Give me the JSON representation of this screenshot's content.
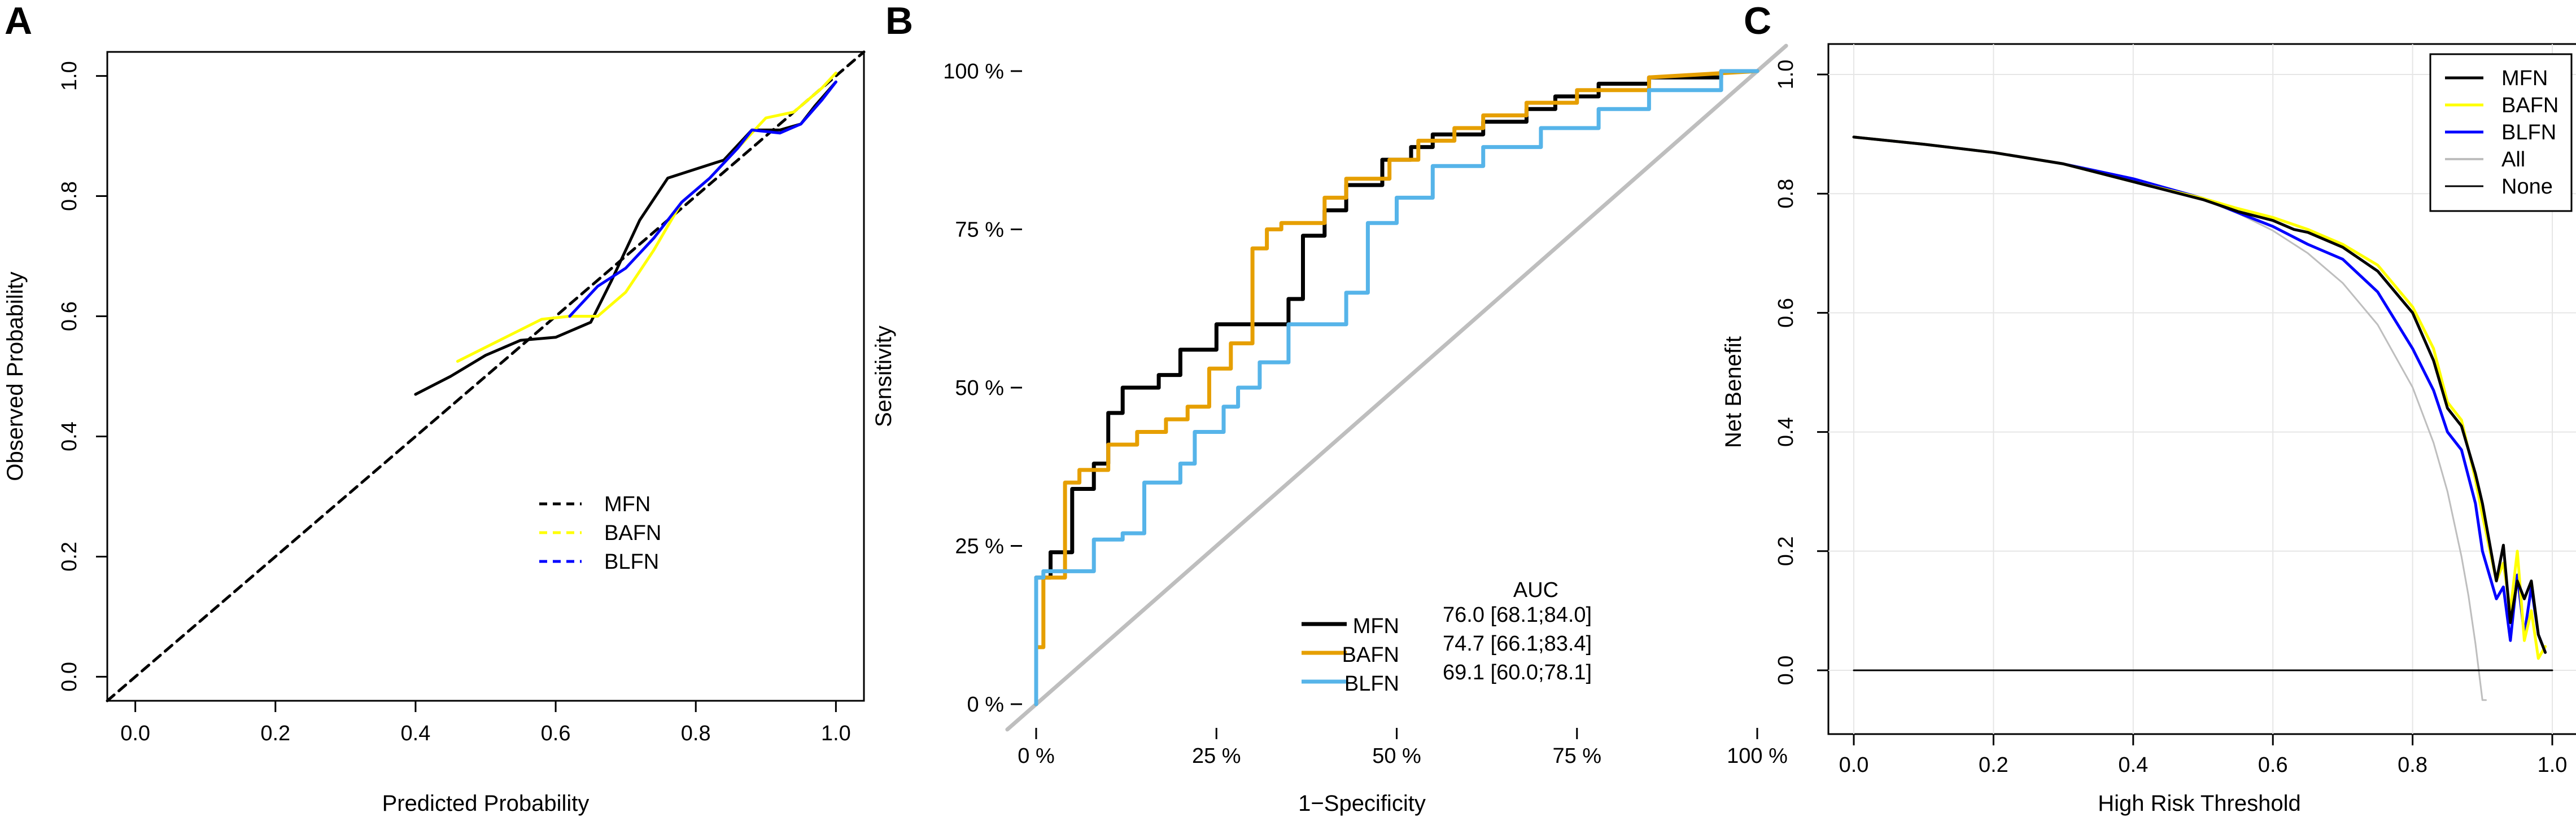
{
  "figure": {
    "panels": [
      "A",
      "B",
      "C"
    ]
  },
  "colors": {
    "mfn": "#000000",
    "bafn": "#ffff00",
    "bafn_roc": "#e69f00",
    "blfn": "#0000ff",
    "blfn_roc": "#56b4e9",
    "diag_roc": "#bebebe",
    "all": "#bebebe",
    "none": "#000000",
    "grid": "#e6e6e6"
  },
  "chart_data": [
    {
      "panel": "A",
      "type": "line",
      "title": "",
      "xlabel": "Predicted Probability",
      "ylabel": "Observed Probability",
      "xlim": [
        -0.04,
        1.04
      ],
      "ylim": [
        -0.04,
        1.04
      ],
      "xticks": [
        "0.0",
        "0.2",
        "0.4",
        "0.6",
        "0.8",
        "1.0"
      ],
      "yticks": [
        "0.0",
        "0.2",
        "0.4",
        "0.6",
        "0.8",
        "1.0"
      ],
      "legend": [
        "MFN",
        "BAFN",
        "BLFN"
      ],
      "series": [
        {
          "name": "Ideal",
          "style": "dashed",
          "color_key": "mfn",
          "x": [
            -0.04,
            1.04
          ],
          "y": [
            -0.04,
            1.04
          ]
        },
        {
          "name": "MFN",
          "color_key": "mfn",
          "x": [
            0.4,
            0.45,
            0.5,
            0.55,
            0.6,
            0.65,
            0.68,
            0.72,
            0.76,
            0.8,
            0.84,
            0.88,
            0.92,
            0.95,
            0.97,
            1.0
          ],
          "y": [
            0.47,
            0.5,
            0.535,
            0.56,
            0.565,
            0.59,
            0.66,
            0.76,
            0.83,
            0.845,
            0.86,
            0.91,
            0.91,
            0.92,
            0.95,
            0.99
          ]
        },
        {
          "name": "BAFN",
          "color_key": "bafn",
          "x": [
            0.46,
            0.52,
            0.58,
            0.62,
            0.66,
            0.7,
            0.74,
            0.78,
            0.82,
            0.86,
            0.9,
            0.94,
            0.98,
            1.0
          ],
          "y": [
            0.525,
            0.56,
            0.595,
            0.6,
            0.6,
            0.64,
            0.71,
            0.79,
            0.83,
            0.88,
            0.93,
            0.94,
            0.98,
            1.005
          ]
        },
        {
          "name": "BLFN",
          "color_key": "blfn",
          "x": [
            0.62,
            0.66,
            0.7,
            0.74,
            0.78,
            0.82,
            0.86,
            0.88,
            0.92,
            0.95,
            0.98,
            1.0
          ],
          "y": [
            0.6,
            0.65,
            0.68,
            0.73,
            0.79,
            0.83,
            0.88,
            0.91,
            0.905,
            0.92,
            0.96,
            0.99
          ]
        }
      ]
    },
    {
      "panel": "B",
      "type": "line",
      "title": "",
      "xlabel": "1−Specificity",
      "ylabel": "Sensitivity",
      "xlim": [
        -0.04,
        1.04
      ],
      "ylim": [
        -0.04,
        1.04
      ],
      "xticks": [
        "0 %",
        "25 %",
        "50 %",
        "75 %",
        "100 %"
      ],
      "yticks": [
        "0 %",
        "25 %",
        "50 %",
        "75 %",
        "100 %"
      ],
      "legend_title": "AUC",
      "legend": [
        {
          "name": "MFN",
          "auc": "76.0 [68.1;84.0]"
        },
        {
          "name": "BAFN",
          "auc": "74.7 [66.1;83.4]"
        },
        {
          "name": "BLFN",
          "auc": "69.1 [60.0;78.1]"
        }
      ],
      "series": [
        {
          "name": "Chance",
          "color_key": "diag_roc",
          "x": [
            -0.04,
            1.04
          ],
          "y": [
            -0.04,
            1.04
          ]
        },
        {
          "name": "MFN",
          "color_key": "mfn",
          "step": true,
          "x": [
            0,
            0,
            0.02,
            0.02,
            0.05,
            0.05,
            0.08,
            0.08,
            0.1,
            0.1,
            0.12,
            0.12,
            0.17,
            0.17,
            0.2,
            0.2,
            0.25,
            0.25,
            0.3,
            0.3,
            0.35,
            0.35,
            0.37,
            0.37,
            0.4,
            0.4,
            0.43,
            0.43,
            0.48,
            0.48,
            0.52,
            0.52,
            0.55,
            0.55,
            0.62,
            0.62,
            0.68,
            0.68,
            0.72,
            0.72,
            0.78,
            0.78,
            0.85,
            0.85,
            0.95,
            0.95,
            1.0
          ],
          "y": [
            0,
            0.2,
            0.2,
            0.24,
            0.24,
            0.34,
            0.34,
            0.38,
            0.38,
            0.46,
            0.46,
            0.5,
            0.5,
            0.52,
            0.52,
            0.56,
            0.56,
            0.6,
            0.6,
            0.6,
            0.6,
            0.64,
            0.64,
            0.74,
            0.74,
            0.78,
            0.78,
            0.82,
            0.82,
            0.86,
            0.86,
            0.88,
            0.88,
            0.9,
            0.9,
            0.92,
            0.92,
            0.94,
            0.94,
            0.96,
            0.96,
            0.98,
            0.98,
            0.99,
            0.99,
            1.0,
            1.0
          ]
        },
        {
          "name": "BAFN",
          "color_key": "bafn_roc",
          "step": true,
          "x": [
            0,
            0,
            0.01,
            0.01,
            0.04,
            0.04,
            0.06,
            0.06,
            0.1,
            0.1,
            0.14,
            0.14,
            0.18,
            0.18,
            0.21,
            0.21,
            0.24,
            0.24,
            0.27,
            0.27,
            0.3,
            0.3,
            0.32,
            0.32,
            0.34,
            0.34,
            0.4,
            0.4,
            0.43,
            0.43,
            0.49,
            0.49,
            0.53,
            0.53,
            0.58,
            0.58,
            0.62,
            0.62,
            0.68,
            0.68,
            0.75,
            0.75,
            0.85,
            0.85,
            1.0
          ],
          "y": [
            0,
            0.09,
            0.09,
            0.2,
            0.2,
            0.35,
            0.35,
            0.37,
            0.37,
            0.41,
            0.41,
            0.43,
            0.43,
            0.45,
            0.45,
            0.47,
            0.47,
            0.53,
            0.53,
            0.57,
            0.57,
            0.72,
            0.72,
            0.75,
            0.75,
            0.76,
            0.76,
            0.8,
            0.8,
            0.83,
            0.83,
            0.86,
            0.86,
            0.89,
            0.89,
            0.91,
            0.91,
            0.93,
            0.93,
            0.95,
            0.95,
            0.97,
            0.97,
            0.99,
            1.0
          ]
        },
        {
          "name": "BLFN",
          "color_key": "blfn_roc",
          "step": true,
          "x": [
            0,
            0,
            0.01,
            0.01,
            0.08,
            0.08,
            0.12,
            0.12,
            0.15,
            0.15,
            0.2,
            0.2,
            0.22,
            0.22,
            0.26,
            0.26,
            0.28,
            0.28,
            0.31,
            0.31,
            0.35,
            0.35,
            0.4,
            0.4,
            0.43,
            0.43,
            0.46,
            0.46,
            0.5,
            0.5,
            0.55,
            0.55,
            0.62,
            0.62,
            0.7,
            0.7,
            0.78,
            0.78,
            0.85,
            0.85,
            0.95,
            0.95,
            1.0
          ],
          "y": [
            0,
            0.2,
            0.2,
            0.21,
            0.21,
            0.26,
            0.26,
            0.27,
            0.27,
            0.35,
            0.35,
            0.38,
            0.38,
            0.43,
            0.43,
            0.47,
            0.47,
            0.5,
            0.5,
            0.54,
            0.54,
            0.6,
            0.6,
            0.6,
            0.6,
            0.65,
            0.65,
            0.76,
            0.76,
            0.8,
            0.8,
            0.85,
            0.85,
            0.88,
            0.88,
            0.91,
            0.91,
            0.94,
            0.94,
            0.97,
            0.97,
            1.0,
            1.0
          ]
        }
      ]
    },
    {
      "panel": "C",
      "type": "line",
      "title": "",
      "xlabel": "High Risk Threshold",
      "ylabel": "Net Benefit",
      "xlim": [
        0,
        1
      ],
      "ylim": [
        -0.05,
        1
      ],
      "xticks": [
        "0.0",
        "0.2",
        "0.4",
        "0.6",
        "0.8",
        "1.0"
      ],
      "yticks": [
        "0.0",
        "0.2",
        "0.4",
        "0.6",
        "0.8",
        "1.0"
      ],
      "legend": [
        "MFN",
        "BAFN",
        "BLFN",
        "All",
        "None"
      ],
      "series": [
        {
          "name": "All",
          "color_key": "all",
          "x": [
            0,
            0.1,
            0.2,
            0.3,
            0.4,
            0.5,
            0.55,
            0.6,
            0.65,
            0.7,
            0.75,
            0.8,
            0.83,
            0.85,
            0.87,
            0.88,
            0.89,
            0.9,
            0.905
          ],
          "y": [
            0.895,
            0.883,
            0.869,
            0.85,
            0.825,
            0.79,
            0.767,
            0.738,
            0.7,
            0.65,
            0.58,
            0.475,
            0.382,
            0.3,
            0.191,
            0.125,
            0.045,
            -0.05,
            -0.05
          ]
        },
        {
          "name": "None",
          "color_key": "none",
          "x": [
            0,
            1
          ],
          "y": [
            0,
            0
          ]
        },
        {
          "name": "BLFN",
          "color_key": "blfn",
          "x": [
            0,
            0.1,
            0.2,
            0.3,
            0.4,
            0.5,
            0.55,
            0.6,
            0.65,
            0.7,
            0.75,
            0.8,
            0.83,
            0.85,
            0.87,
            0.89,
            0.9,
            0.92,
            0.93,
            0.94,
            0.95,
            0.96,
            0.97,
            0.98,
            0.99
          ],
          "y": [
            0.895,
            0.883,
            0.869,
            0.85,
            0.825,
            0.792,
            0.768,
            0.745,
            0.715,
            0.69,
            0.635,
            0.54,
            0.47,
            0.4,
            0.37,
            0.28,
            0.2,
            0.12,
            0.14,
            0.05,
            0.16,
            0.06,
            0.14,
            0.06,
            0.03
          ]
        },
        {
          "name": "BAFN",
          "color_key": "bafn",
          "x": [
            0,
            0.1,
            0.2,
            0.3,
            0.4,
            0.5,
            0.55,
            0.6,
            0.65,
            0.7,
            0.75,
            0.8,
            0.83,
            0.85,
            0.87,
            0.89,
            0.9,
            0.92,
            0.93,
            0.94,
            0.95,
            0.96,
            0.97,
            0.98,
            0.99
          ],
          "y": [
            0.895,
            0.883,
            0.869,
            0.85,
            0.82,
            0.792,
            0.775,
            0.76,
            0.74,
            0.715,
            0.68,
            0.61,
            0.54,
            0.45,
            0.42,
            0.32,
            0.26,
            0.15,
            0.18,
            0.1,
            0.2,
            0.05,
            0.1,
            0.02,
            0.04
          ]
        },
        {
          "name": "MFN",
          "color_key": "mfn",
          "x": [
            0,
            0.1,
            0.2,
            0.3,
            0.4,
            0.5,
            0.55,
            0.6,
            0.63,
            0.65,
            0.7,
            0.75,
            0.8,
            0.83,
            0.85,
            0.87,
            0.89,
            0.9,
            0.92,
            0.93,
            0.94,
            0.95,
            0.96,
            0.97,
            0.98,
            0.99
          ],
          "y": [
            0.895,
            0.883,
            0.869,
            0.85,
            0.82,
            0.79,
            0.77,
            0.755,
            0.74,
            0.735,
            0.71,
            0.67,
            0.6,
            0.52,
            0.44,
            0.41,
            0.33,
            0.28,
            0.15,
            0.21,
            0.08,
            0.15,
            0.12,
            0.15,
            0.06,
            0.03
          ]
        }
      ]
    }
  ]
}
